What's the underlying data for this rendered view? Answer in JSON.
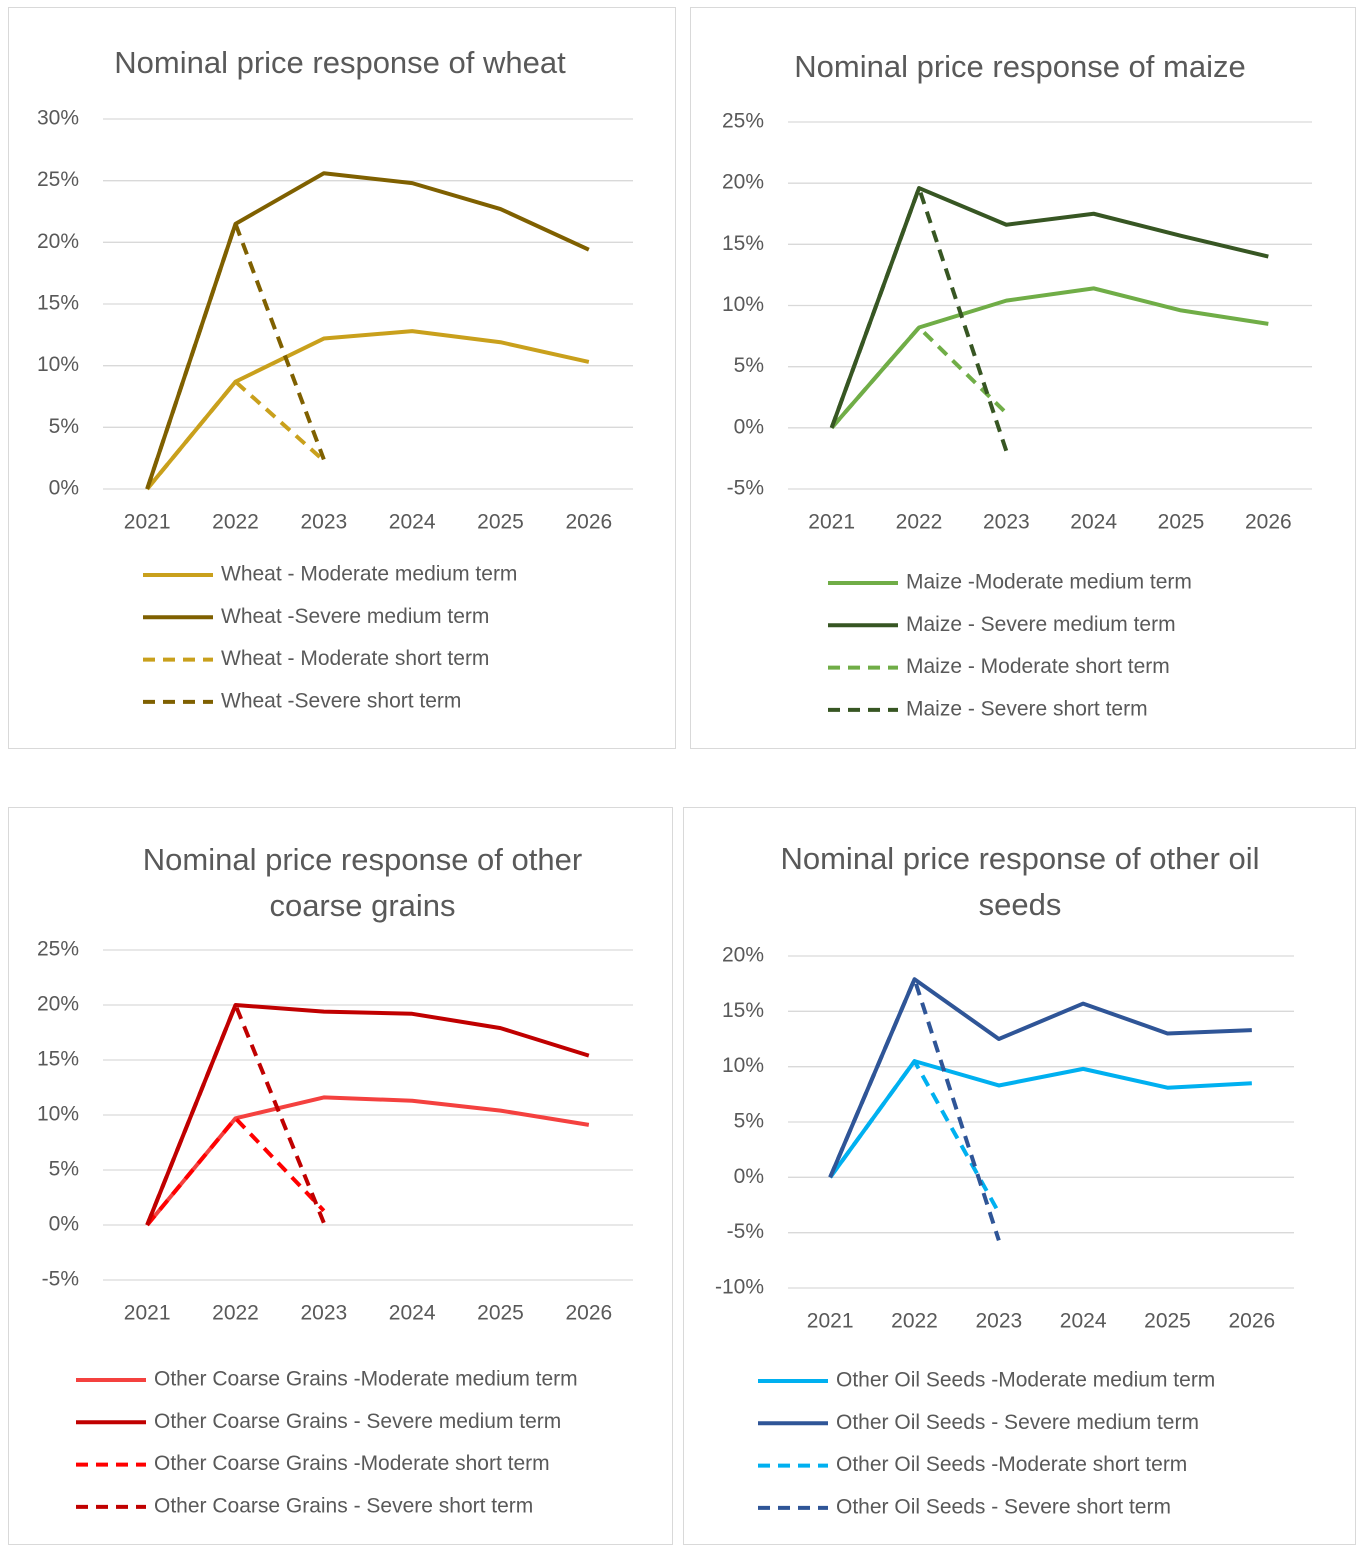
{
  "chart_data": [
    {
      "type": "line",
      "title": "Nominal price response of wheat",
      "categories": [
        "2021",
        "2022",
        "2023",
        "2024",
        "2025",
        "2026"
      ],
      "ylim": [
        0,
        30
      ],
      "yticks": [
        {
          "value": 0,
          "label": "0%"
        },
        {
          "value": 5,
          "label": "5%"
        },
        {
          "value": 10,
          "label": "10%"
        },
        {
          "value": 15,
          "label": "15%"
        },
        {
          "value": 20,
          "label": "20%"
        },
        {
          "value": 25,
          "label": "25%"
        },
        {
          "value": 30,
          "label": "30%"
        }
      ],
      "grid": true,
      "series": [
        {
          "name": "Wheat - Moderate medium term",
          "color": "#c9a01c",
          "dash": false,
          "values": [
            0,
            8.7,
            12.2,
            12.8,
            11.9,
            10.3
          ]
        },
        {
          "name": "Wheat -Severe medium term",
          "color": "#7f6000",
          "dash": false,
          "values": [
            0,
            21.5,
            25.6,
            24.8,
            22.7,
            19.4
          ]
        },
        {
          "name": "Wheat - Moderate short term",
          "color": "#c9a01c",
          "dash": true,
          "values": [
            0,
            8.7,
            2.3,
            null,
            null,
            null
          ]
        },
        {
          "name": "Wheat -Severe short term",
          "color": "#7f6000",
          "dash": true,
          "values": [
            0,
            21.5,
            2.4,
            null,
            null,
            null
          ]
        }
      ]
    },
    {
      "type": "line",
      "title": "Nominal price response of maize",
      "categories": [
        "2021",
        "2022",
        "2023",
        "2024",
        "2025",
        "2026"
      ],
      "ylim": [
        -5,
        25
      ],
      "yticks": [
        {
          "value": -5,
          "label": "-5%"
        },
        {
          "value": 0,
          "label": "0%"
        },
        {
          "value": 5,
          "label": "5%"
        },
        {
          "value": 10,
          "label": "10%"
        },
        {
          "value": 15,
          "label": "15%"
        },
        {
          "value": 20,
          "label": "20%"
        },
        {
          "value": 25,
          "label": "25%"
        }
      ],
      "grid": true,
      "series": [
        {
          "name": "Maize -Moderate medium term",
          "color": "#70ad47",
          "dash": false,
          "values": [
            0,
            8.2,
            10.4,
            11.4,
            9.6,
            8.5
          ]
        },
        {
          "name": "Maize - Severe medium term",
          "color": "#375623",
          "dash": false,
          "values": [
            0,
            19.6,
            16.6,
            17.5,
            15.7,
            14.0
          ]
        },
        {
          "name": "Maize - Moderate short term",
          "color": "#70ad47",
          "dash": true,
          "values": [
            0,
            8.2,
            1.2,
            null,
            null,
            null
          ]
        },
        {
          "name": "Maize - Severe short term",
          "color": "#375623",
          "dash": true,
          "values": [
            0,
            19.6,
            -1.9,
            null,
            null,
            null
          ]
        }
      ]
    },
    {
      "type": "line",
      "title": "Nominal price response of other coarse grains",
      "categories": [
        "2021",
        "2022",
        "2023",
        "2024",
        "2025",
        "2026"
      ],
      "ylim": [
        -5,
        25
      ],
      "yticks": [
        {
          "value": -5,
          "label": "-5%"
        },
        {
          "value": 0,
          "label": "0%"
        },
        {
          "value": 5,
          "label": "5%"
        },
        {
          "value": 10,
          "label": "10%"
        },
        {
          "value": 15,
          "label": "15%"
        },
        {
          "value": 20,
          "label": "20%"
        },
        {
          "value": 25,
          "label": "25%"
        }
      ],
      "grid": true,
      "series": [
        {
          "name": "Other Coarse Grains -Moderate medium term",
          "color": "#f4413f",
          "dash": false,
          "values": [
            0,
            9.7,
            11.6,
            11.3,
            10.4,
            9.1
          ]
        },
        {
          "name": "Other Coarse Grains - Severe medium term",
          "color": "#c00000",
          "dash": false,
          "values": [
            0,
            20.0,
            19.4,
            19.2,
            17.9,
            15.4
          ]
        },
        {
          "name": "Other Coarse Grains -Moderate short term",
          "color": "#ff0000",
          "dash": true,
          "values": [
            0,
            9.7,
            1.3,
            null,
            null,
            null
          ]
        },
        {
          "name": "Other Coarse Grains - Severe short term",
          "color": "#c00000",
          "dash": true,
          "values": [
            0,
            20.0,
            0.2,
            null,
            null,
            null
          ]
        }
      ]
    },
    {
      "type": "line",
      "title": "Nominal price response of other oil seeds",
      "categories": [
        "2021",
        "2022",
        "2023",
        "2024",
        "2025",
        "2026"
      ],
      "ylim": [
        -10,
        20
      ],
      "yticks": [
        {
          "value": -10,
          "label": "-10%"
        },
        {
          "value": -5,
          "label": "-5%"
        },
        {
          "value": 0,
          "label": "0%"
        },
        {
          "value": 5,
          "label": "5%"
        },
        {
          "value": 10,
          "label": "10%"
        },
        {
          "value": 15,
          "label": "15%"
        },
        {
          "value": 20,
          "label": "20%"
        }
      ],
      "grid": true,
      "series": [
        {
          "name": "Other Oil Seeds -Moderate medium term",
          "color": "#00b0f0",
          "dash": false,
          "values": [
            0,
            10.5,
            8.3,
            9.8,
            8.1,
            8.5
          ]
        },
        {
          "name": "Other Oil Seeds - Severe medium term",
          "color": "#2f5597",
          "dash": false,
          "values": [
            0,
            17.9,
            12.5,
            15.7,
            13.0,
            13.3
          ]
        },
        {
          "name": "Other Oil Seeds -Moderate short term",
          "color": "#00b0f0",
          "dash": true,
          "values": [
            0,
            10.5,
            -3.2,
            null,
            null,
            null
          ]
        },
        {
          "name": "Other Oil Seeds - Severe short term",
          "color": "#2f5597",
          "dash": true,
          "values": [
            0,
            17.9,
            -5.7,
            null,
            null,
            null
          ]
        }
      ]
    }
  ]
}
